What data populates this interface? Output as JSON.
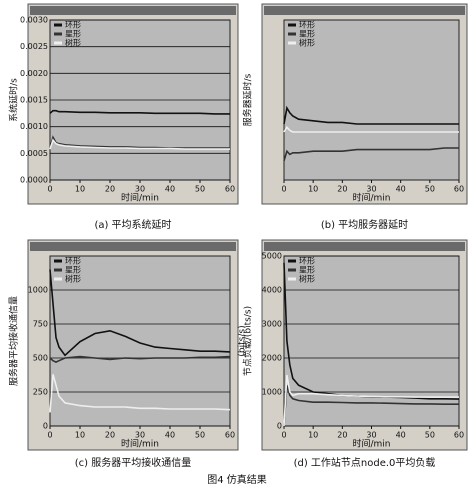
{
  "figure_caption": "图4 仿真结果",
  "chart_data": [
    {
      "type": "line",
      "caption": "(a) 平均系统延时",
      "ylabel": "系统延时/s",
      "xlabel": "时间/min",
      "x": [
        0,
        1,
        2,
        3,
        5,
        10,
        15,
        20,
        25,
        30,
        35,
        40,
        45,
        50,
        55,
        60
      ],
      "xlim": [
        0,
        60
      ],
      "xticks": [
        0,
        10,
        20,
        30,
        40,
        50,
        60
      ],
      "ylim": [
        0,
        0.003
      ],
      "yticks": [
        {
          "value": 0,
          "label": "0.0000"
        },
        {
          "value": 0.0005,
          "label": "0.0005"
        },
        {
          "value": 0.001,
          "label": "0.0010"
        },
        {
          "value": 0.0015,
          "label": "0.0015"
        },
        {
          "value": 0.002,
          "label": "0.0020"
        },
        {
          "value": 0.0025,
          "label": "0.0025"
        },
        {
          "value": 0.003,
          "label": "0.0030"
        }
      ],
      "grid": true,
      "series": [
        {
          "name": "环形",
          "color": "#111111",
          "values": [
            0.00125,
            0.0013,
            0.0013,
            0.00128,
            0.00128,
            0.00127,
            0.00127,
            0.00126,
            0.00126,
            0.00126,
            0.00125,
            0.00125,
            0.00125,
            0.00125,
            0.00124,
            0.00124
          ]
        },
        {
          "name": "星形",
          "color": "#333333",
          "values": [
            0.0006,
            0.0008,
            0.0007,
            0.00068,
            0.00066,
            0.00064,
            0.00063,
            0.00062,
            0.00062,
            0.00061,
            0.00061,
            0.0006,
            0.0006,
            0.0006,
            0.0006,
            0.0006
          ]
        },
        {
          "name": "树形",
          "color": "#eeeeee",
          "values": [
            0.00058,
            0.00075,
            0.00068,
            0.00066,
            0.00064,
            0.00062,
            0.00061,
            0.0006,
            0.0006,
            0.00059,
            0.00059,
            0.00059,
            0.00058,
            0.00058,
            0.00058,
            0.00058
          ]
        }
      ]
    },
    {
      "type": "line",
      "caption": "(b) 平均服务器延时",
      "ylabel": "服务器延时/s",
      "xlabel": "时间/min",
      "x": [
        0,
        1,
        2,
        3,
        5,
        10,
        15,
        20,
        25,
        30,
        35,
        40,
        45,
        50,
        55,
        60
      ],
      "xlim": [
        0,
        60
      ],
      "xticks": [
        0,
        10,
        20,
        30,
        40,
        50,
        60
      ],
      "ylim": [
        0,
        1
      ],
      "grid": true,
      "series": [
        {
          "name": "环形",
          "color": "#111111",
          "values": [
            0.35,
            0.45,
            0.42,
            0.4,
            0.38,
            0.37,
            0.36,
            0.36,
            0.35,
            0.35,
            0.35,
            0.35,
            0.35,
            0.35,
            0.35,
            0.35
          ]
        },
        {
          "name": "星形",
          "color": "#333333",
          "values": [
            0.12,
            0.18,
            0.16,
            0.17,
            0.17,
            0.18,
            0.18,
            0.18,
            0.19,
            0.19,
            0.19,
            0.19,
            0.19,
            0.19,
            0.2,
            0.2
          ]
        },
        {
          "name": "树形",
          "color": "#eeeeee",
          "values": [
            0.3,
            0.33,
            0.31,
            0.3,
            0.3,
            0.3,
            0.3,
            0.3,
            0.3,
            0.3,
            0.3,
            0.3,
            0.3,
            0.3,
            0.3,
            0.3
          ]
        }
      ]
    },
    {
      "type": "line",
      "caption": "(c) 服务器平均接收通信量",
      "ylabel": "服务器平均接收通信量",
      "yunit": "(bits/s)",
      "xlabel": "时间/min",
      "x": [
        0,
        1,
        2,
        3,
        5,
        10,
        15,
        20,
        25,
        30,
        35,
        40,
        45,
        50,
        55,
        60
      ],
      "xlim": [
        0,
        60
      ],
      "xticks": [
        0,
        10,
        20,
        30,
        40,
        50,
        60
      ],
      "ylim": [
        0,
        1250
      ],
      "yticks": [
        0,
        250,
        500,
        750,
        1000
      ],
      "grid": true,
      "series": [
        {
          "name": "环形",
          "color": "#111111",
          "values": [
            1150,
            900,
            650,
            580,
            520,
            620,
            680,
            700,
            660,
            610,
            580,
            570,
            560,
            550,
            550,
            545
          ]
        },
        {
          "name": "星形",
          "color": "#333333",
          "values": [
            500,
            480,
            470,
            480,
            500,
            510,
            500,
            490,
            500,
            495,
            500,
            500,
            500,
            505,
            505,
            510
          ]
        },
        {
          "name": "树形",
          "color": "#eeeeee",
          "values": [
            100,
            380,
            300,
            220,
            170,
            150,
            140,
            140,
            140,
            130,
            130,
            125,
            125,
            125,
            125,
            120
          ]
        }
      ]
    },
    {
      "type": "line",
      "caption": "(d) 工作站节点node.0平均负载",
      "ylabel": "节点负载/(bits/s)",
      "xlabel": "时间/min",
      "x": [
        0,
        1,
        2,
        3,
        5,
        10,
        15,
        20,
        25,
        30,
        35,
        40,
        45,
        50,
        55,
        60
      ],
      "xlim": [
        0,
        60
      ],
      "xticks": [
        0,
        10,
        20,
        30,
        40,
        50,
        60
      ],
      "ylim": [
        0,
        5000
      ],
      "yticks": [
        0,
        1000,
        2000,
        3000,
        4000,
        5000
      ],
      "grid": true,
      "series": [
        {
          "name": "环形",
          "color": "#111111",
          "values": [
            4800,
            2500,
            1800,
            1400,
            1200,
            1000,
            950,
            900,
            880,
            860,
            850,
            840,
            820,
            800,
            800,
            790
          ]
        },
        {
          "name": "星形",
          "color": "#333333",
          "values": [
            0,
            1200,
            900,
            800,
            750,
            700,
            700,
            690,
            680,
            680,
            670,
            660,
            650,
            650,
            640,
            640
          ]
        },
        {
          "name": "树形",
          "color": "#eeeeee",
          "values": [
            0,
            1500,
            1000,
            900,
            950,
            950,
            920,
            900,
            880,
            870,
            860,
            860,
            850,
            850,
            850,
            850
          ]
        }
      ]
    }
  ]
}
